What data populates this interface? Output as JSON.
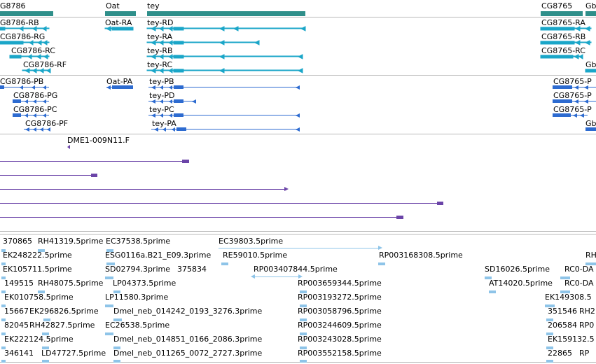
{
  "colors": {
    "gene": "#2f8f8a",
    "rna": "#1aa6c8",
    "protein": "#2d6bd0",
    "bac": "#6b44a8",
    "est": "#8ec4e8",
    "separator": "#b8b8b8"
  },
  "genes": {
    "labels": [
      "G8786",
      "Oat",
      "tey",
      "CG8765",
      "Gb"
    ]
  },
  "transcripts": {
    "labels": [
      "G8786-RB",
      "CG8786-RG",
      "CG8786-RC",
      "CG8786-RF",
      "Oat-RA",
      "tey-RD",
      "tey-RA",
      "tey-RB",
      "tey-RC",
      "CG8765-RA",
      "CG8765-RB",
      "CG8765-RC",
      "Gb"
    ]
  },
  "proteins": {
    "labels": [
      "CG8786-PB",
      "CG8786-PG",
      "CG8786-PC",
      "CG8786-PF",
      "Oat-PA",
      "tey-PB",
      "tey-PD",
      "tey-PC",
      "tey-PA",
      "CG8765-P",
      "CG8765-P",
      "CG8765-P",
      "Gb"
    ]
  },
  "bac": {
    "label": "DME1-009N11.F"
  },
  "ests": {
    "labels": [
      "370865",
      "RH41319.5prime",
      "EC37538.5prime",
      "EC39803.5prime",
      "EK248222.5prime",
      "ESG0116a.B21_E09.3prime",
      "RE59010.5prime",
      "RP003168308.5prime",
      "RH",
      "EK105711.5prime",
      "SD02794.3prime",
      "375834",
      "RP003407844.5prime",
      "SD16026.5prime",
      "RC0-DA",
      "149515",
      "RH48075.5prime",
      "LP04373.5prime",
      "RP003659344.5prime",
      "AT14020.5prime",
      "RC0-DA",
      "EK010758.5prime",
      "LP11580.3prime",
      "RP003193272.5prime",
      "EK149308.5",
      "15667",
      "EK296826.5prime",
      "Dmel_neb_014242_0193_3276.3prime",
      "RP003058796.5prime",
      "351546",
      "RH2",
      "82045",
      "RH42827.5prime",
      "EC26538.5prime",
      "RP003244609.5prime",
      "206584",
      "RP0",
      "EK222124.5prime",
      "Dmel_neb_014851_0166_2086.3prime",
      "RP003243028.5prime",
      "EK159132.5",
      "346141",
      "LD47727.5prime",
      "Dmel_neb_011265_0072_2727.3prime",
      "RP003552158.5prime",
      "22865",
      "RP"
    ]
  }
}
